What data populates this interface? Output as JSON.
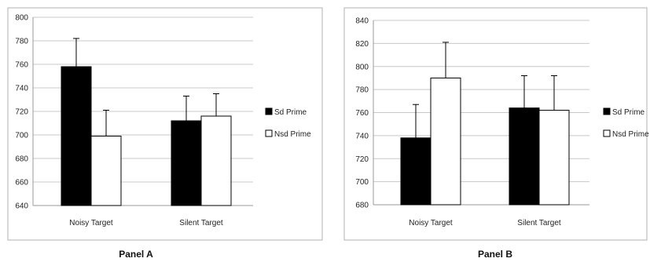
{
  "chart_data": [
    {
      "type": "bar",
      "title": "Panel A",
      "categories": [
        "Noisy Target",
        "Silent Target"
      ],
      "series": [
        {
          "name": "Sd Prime",
          "values": [
            758,
            712
          ],
          "errors": [
            24,
            21
          ],
          "color": "#000000"
        },
        {
          "name": "Nsd Prime",
          "values": [
            699,
            716
          ],
          "errors": [
            22,
            19
          ],
          "color": "#ffffff"
        }
      ],
      "ylim": [
        640,
        800
      ],
      "yticks": [
        640,
        660,
        680,
        700,
        720,
        740,
        760,
        780,
        800
      ],
      "grid": true,
      "legend": "right"
    },
    {
      "type": "bar",
      "title": "Panel B",
      "categories": [
        "Noisy Target",
        "Silent Target"
      ],
      "series": [
        {
          "name": "Sd Prime",
          "values": [
            738,
            764
          ],
          "errors": [
            29,
            28
          ],
          "color": "#000000"
        },
        {
          "name": "Nsd Prime",
          "values": [
            790,
            762
          ],
          "errors": [
            31,
            30
          ],
          "color": "#ffffff"
        }
      ],
      "ylim": [
        680,
        840
      ],
      "yticks": [
        680,
        700,
        720,
        740,
        760,
        780,
        800,
        820,
        840
      ],
      "grid": true,
      "legend": "right"
    }
  ]
}
